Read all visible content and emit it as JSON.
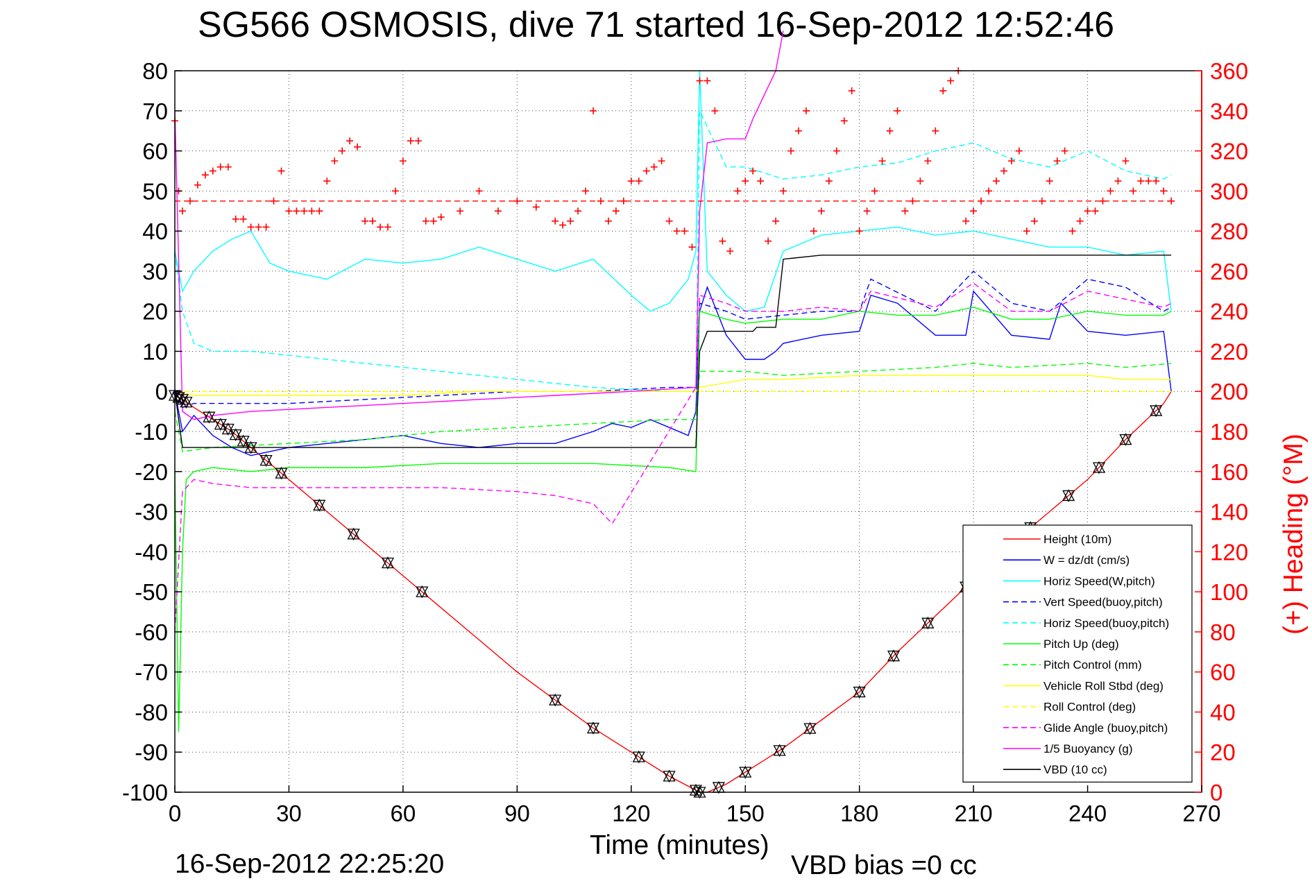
{
  "title": "SG566 OSMOSIS, dive 71 started 16-Sep-2012 12:52:46",
  "footer": {
    "timestamp": "16-Sep-2012 22:25:20",
    "vbd_bias": "VBD bias =0 cc"
  },
  "chart_data": {
    "type": "line",
    "title": "SG566 OSMOSIS, dive 71 started 16-Sep-2012 12:52:46",
    "xlabel": "Time (minutes)",
    "ylabel": "",
    "ylabel_right": "(+) Heading (°M)",
    "xlim": [
      0,
      270
    ],
    "ylim": [
      -100,
      80
    ],
    "ylim_right": [
      0,
      360
    ],
    "xticks": [
      0,
      30,
      60,
      90,
      120,
      150,
      180,
      210,
      240,
      270
    ],
    "yticks": [
      -100,
      -90,
      -80,
      -70,
      -60,
      -50,
      -40,
      -30,
      -20,
      -10,
      0,
      10,
      20,
      30,
      40,
      50,
      60,
      70,
      80
    ],
    "yticks_right": [
      0,
      20,
      40,
      60,
      80,
      100,
      120,
      140,
      160,
      180,
      200,
      220,
      240,
      260,
      280,
      300,
      320,
      340,
      360
    ],
    "grid": true,
    "legend_position": "bottom-right",
    "colors": {
      "red": "#ff0000",
      "blue": "#0000ff",
      "cyan": "#00ffff",
      "green": "#00ff00",
      "yellow": "#ffff00",
      "magenta": "#ff00ff",
      "black": "#000000"
    },
    "series": [
      {
        "name": "Height (10m)",
        "color": "#ff0000",
        "style": "solid",
        "x": [
          0,
          2,
          5,
          10,
          15,
          20,
          25,
          30,
          40,
          50,
          60,
          70,
          80,
          90,
          100,
          110,
          120,
          130,
          138,
          140,
          145,
          150,
          155,
          160,
          170,
          180,
          190,
          200,
          210,
          220,
          230,
          240,
          250,
          260,
          262
        ],
        "y": [
          -1,
          -2,
          -4,
          -7,
          -10,
          -14,
          -18,
          -22,
          -30,
          -38,
          -46,
          -54,
          -62,
          -70,
          -77,
          -84,
          -90,
          -96,
          -100,
          -100,
          -98,
          -95,
          -92,
          -89,
          -82,
          -75,
          -65,
          -56,
          -47,
          -38,
          -30,
          -22,
          -12,
          -3,
          0
        ]
      },
      {
        "name": "W = dz/dt (cm/s)",
        "color": "#0000ff",
        "style": "solid",
        "x": [
          0,
          2,
          5,
          10,
          15,
          20,
          25,
          30,
          40,
          50,
          60,
          70,
          80,
          90,
          100,
          110,
          115,
          120,
          125,
          130,
          135,
          137,
          138,
          140,
          145,
          150,
          155,
          158,
          160,
          170,
          180,
          183,
          190,
          200,
          208,
          210,
          220,
          230,
          233,
          240,
          250,
          260,
          262
        ],
        "y": [
          0,
          -10,
          -6,
          -11,
          -14,
          -16,
          -15,
          -14,
          -13,
          -12,
          -11,
          -13,
          -14,
          -13,
          -13,
          -10,
          -8,
          -9,
          -7,
          -9,
          -11,
          -5,
          20,
          26,
          14,
          8,
          8,
          10,
          12,
          14,
          15,
          24,
          22,
          14,
          14,
          25,
          14,
          13,
          22,
          15,
          14,
          15,
          0
        ]
      },
      {
        "name": "Horiz Speed(W,pitch)",
        "color": "#00ffff",
        "style": "solid",
        "x": [
          0,
          2,
          5,
          10,
          15,
          20,
          25,
          30,
          40,
          50,
          60,
          70,
          80,
          90,
          100,
          110,
          120,
          125,
          130,
          135,
          137,
          138,
          140,
          145,
          150,
          155,
          160,
          170,
          180,
          190,
          200,
          210,
          220,
          230,
          240,
          250,
          260,
          262
        ],
        "y": [
          35,
          25,
          30,
          35,
          38,
          40,
          32,
          30,
          28,
          33,
          32,
          33,
          36,
          33,
          30,
          33,
          24,
          20,
          22,
          28,
          35,
          80,
          30,
          24,
          20,
          21,
          35,
          39,
          40,
          41,
          39,
          40,
          38,
          36,
          36,
          34,
          35,
          20
        ]
      },
      {
        "name": "Vert Speed(buoy,pitch)",
        "color": "#0000ff",
        "style": "dashed",
        "x": [
          0,
          2,
          5,
          10,
          20,
          30,
          50,
          70,
          90,
          110,
          130,
          137,
          138,
          145,
          150,
          160,
          170,
          180,
          183,
          200,
          210,
          220,
          230,
          240,
          250,
          260,
          262
        ],
        "y": [
          0,
          -4,
          -3,
          -3,
          -3,
          -3,
          -2,
          -1,
          0,
          0,
          1,
          1,
          22,
          20,
          18,
          19,
          20,
          20,
          28,
          20,
          30,
          22,
          20,
          28,
          26,
          20,
          21
        ]
      },
      {
        "name": "Horiz Speed(buoy,pitch)",
        "color": "#00ffff",
        "style": "dashed",
        "x": [
          0,
          2,
          5,
          10,
          20,
          30,
          50,
          70,
          90,
          110,
          130,
          137,
          138,
          145,
          150,
          160,
          170,
          180,
          190,
          200,
          210,
          220,
          230,
          240,
          250,
          260,
          262
        ],
        "y": [
          35,
          20,
          12,
          10,
          10,
          9,
          7,
          5,
          3,
          1,
          0,
          0,
          70,
          56,
          56,
          53,
          54,
          56,
          57,
          60,
          62,
          58,
          56,
          60,
          55,
          53,
          54
        ]
      },
      {
        "name": "Pitch Up (deg)",
        "color": "#00ff00",
        "style": "solid",
        "x": [
          0,
          1,
          2,
          3,
          5,
          10,
          20,
          30,
          50,
          70,
          90,
          110,
          130,
          137,
          138,
          145,
          150,
          160,
          170,
          180,
          190,
          200,
          210,
          220,
          230,
          240,
          250,
          260,
          262
        ],
        "y": [
          -20,
          -85,
          -40,
          -22,
          -20,
          -19,
          -20,
          -19,
          -19,
          -18,
          -18,
          -18,
          -19,
          -20,
          20,
          18,
          17,
          18,
          18,
          20,
          19,
          19,
          21,
          18,
          18,
          20,
          19,
          19,
          20
        ]
      },
      {
        "name": "Pitch Control (mm)",
        "color": "#00ff00",
        "style": "dashed",
        "x": [
          0,
          2,
          10,
          30,
          50,
          70,
          90,
          110,
          130,
          137,
          138,
          145,
          150,
          160,
          180,
          200,
          210,
          220,
          240,
          250,
          262
        ],
        "y": [
          -5,
          -15,
          -14,
          -13,
          -12,
          -10,
          -9,
          -8,
          -7,
          -7,
          5,
          5,
          5,
          4,
          5,
          6,
          7,
          6,
          7,
          6,
          7
        ]
      },
      {
        "name": "Vehicle Roll Stbd (deg)",
        "color": "#ffff00",
        "style": "solid",
        "x": [
          0,
          5,
          20,
          40,
          60,
          80,
          100,
          120,
          137,
          138,
          150,
          160,
          180,
          200,
          220,
          240,
          250,
          262
        ],
        "y": [
          0,
          -1,
          -1,
          -1,
          -1,
          0,
          0,
          0,
          0,
          1,
          3,
          3,
          4,
          4,
          4,
          4,
          3,
          3
        ]
      },
      {
        "name": "Roll Control (deg)",
        "color": "#ffff00",
        "style": "dashed",
        "x": [
          0,
          30,
          60,
          90,
          120,
          137,
          138,
          160,
          190,
          220,
          250,
          262
        ],
        "y": [
          0,
          0,
          0,
          0,
          0,
          0,
          0,
          0,
          0,
          0,
          0,
          0
        ]
      },
      {
        "name": "Glide Angle (buoy,pitch)",
        "color": "#ff00ff",
        "style": "dashed",
        "x": [
          0,
          2,
          5,
          10,
          20,
          30,
          50,
          70,
          90,
          100,
          110,
          115,
          137,
          138,
          145,
          150,
          160,
          170,
          180,
          183,
          200,
          210,
          220,
          230,
          240,
          250,
          260,
          262
        ],
        "y": [
          -60,
          -25,
          -22,
          -23,
          -24,
          -24,
          -24,
          -24,
          -25,
          -26,
          -28,
          -33,
          1,
          24,
          22,
          20,
          20,
          21,
          20,
          25,
          21,
          27,
          20,
          20,
          25,
          23,
          21,
          22
        ]
      },
      {
        "name": "1/5 Buoyancy (g)",
        "color": "#ff00ff",
        "style": "solid",
        "x": [
          0,
          2,
          5,
          10,
          20,
          40,
          60,
          80,
          100,
          120,
          137,
          138,
          140,
          145,
          150,
          152,
          158,
          160
        ],
        "y": [
          70,
          -5,
          -7,
          -6,
          -5,
          -4,
          -3,
          -2,
          -1,
          0,
          1,
          45,
          62,
          63,
          63,
          68,
          80,
          90
        ]
      },
      {
        "name": "VBD (10 cc)",
        "color": "#000000",
        "style": "solid",
        "x": [
          0,
          2,
          10,
          30,
          60,
          90,
          120,
          137,
          138,
          140,
          145,
          150,
          152,
          153,
          158,
          160,
          170,
          190,
          210,
          230,
          250,
          262
        ],
        "y": [
          0,
          -14,
          -14,
          -14,
          -14,
          -14,
          -14,
          -14,
          10,
          15,
          15,
          15,
          15,
          16,
          16,
          33,
          34,
          34,
          34,
          34,
          34,
          34
        ]
      },
      {
        "name": "(+) Heading (°M)",
        "color": "#ff0000",
        "style": "markers",
        "axis": "right",
        "x": [
          0,
          1,
          2,
          4,
          6,
          8,
          10,
          12,
          14,
          16,
          18,
          20,
          22,
          24,
          26,
          28,
          30,
          32,
          34,
          36,
          38,
          40,
          42,
          44,
          46,
          48,
          50,
          52,
          54,
          56,
          58,
          60,
          62,
          64,
          66,
          68,
          70,
          75,
          80,
          85,
          90,
          95,
          100,
          102,
          104,
          106,
          108,
          110,
          112,
          114,
          116,
          118,
          120,
          122,
          124,
          126,
          128,
          130,
          132,
          134,
          136,
          138,
          140,
          142,
          144,
          146,
          148,
          150,
          152,
          154,
          156,
          158,
          160,
          162,
          164,
          166,
          168,
          170,
          172,
          174,
          176,
          178,
          180,
          182,
          184,
          186,
          188,
          190,
          192,
          194,
          196,
          198,
          200,
          202,
          204,
          206,
          208,
          210,
          212,
          214,
          216,
          218,
          220,
          222,
          224,
          226,
          228,
          230,
          232,
          234,
          236,
          238,
          240,
          242,
          244,
          246,
          248,
          250,
          252,
          254,
          256,
          258,
          260,
          262
        ],
        "y": [
          335,
          300,
          290,
          295,
          303,
          308,
          310,
          312,
          312,
          286,
          286,
          282,
          282,
          282,
          295,
          310,
          290,
          290,
          290,
          290,
          290,
          305,
          315,
          320,
          325,
          322,
          285,
          285,
          282,
          282,
          300,
          315,
          325,
          325,
          285,
          285,
          287,
          290,
          300,
          290,
          295,
          292,
          285,
          283,
          285,
          290,
          300,
          340,
          295,
          285,
          290,
          295,
          305,
          305,
          310,
          312,
          315,
          285,
          280,
          280,
          272,
          355,
          355,
          340,
          275,
          270,
          300,
          305,
          310,
          305,
          275,
          285,
          300,
          320,
          330,
          340,
          280,
          290,
          305,
          320,
          335,
          350,
          280,
          290,
          300,
          315,
          330,
          340,
          290,
          295,
          305,
          315,
          330,
          350,
          355,
          360,
          285,
          290,
          295,
          300,
          305,
          310,
          315,
          320,
          280,
          285,
          295,
          305,
          315,
          320,
          280,
          285,
          290,
          290,
          295,
          300,
          305,
          315,
          300,
          305,
          305,
          305,
          300,
          295
        ]
      },
      {
        "name": "",
        "color": "#ff0000",
        "style": "dashed-hline",
        "axis": "right",
        "x": [
          0,
          262
        ],
        "y": [
          295,
          295
        ]
      }
    ],
    "markers": {
      "down_triangle_x": [
        0,
        1,
        2,
        3,
        9,
        12,
        14,
        16,
        18,
        20,
        24,
        28,
        38,
        47,
        56,
        65,
        100,
        110,
        122,
        130,
        137,
        138,
        143,
        150,
        159,
        167,
        180,
        189,
        198,
        208,
        225,
        235,
        243,
        250,
        258
      ],
      "note": "Black hollow triangles drawn along the Height (10m) trace"
    }
  }
}
